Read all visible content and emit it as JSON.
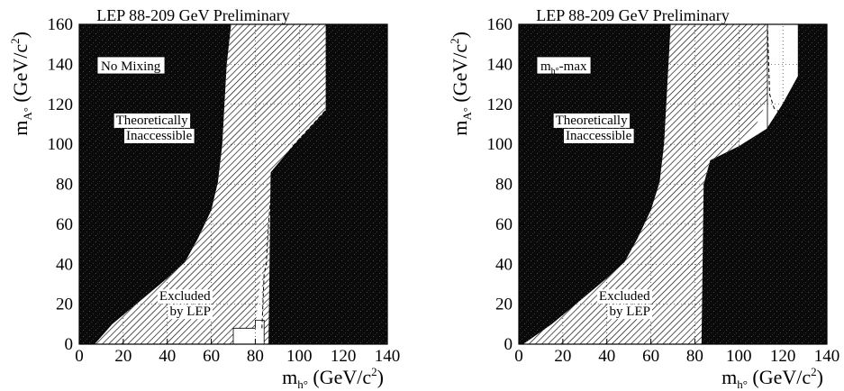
{
  "chart_data": [
    {
      "type": "area",
      "title": "LEP 88-209 GeV Preliminary",
      "scenario_label": "No Mixing",
      "xlabel": {
        "main": "m",
        "sub": "h°",
        "unit": " (GeV/c",
        "sup": "2",
        "close": ")"
      },
      "ylabel": {
        "main": "m",
        "sub": "A°",
        "unit": " (GeV/c",
        "sup": "2",
        "close": ")"
      },
      "xlim": [
        0,
        140
      ],
      "ylim": [
        0,
        160
      ],
      "x_ticks": [
        "0",
        "20",
        "40",
        "60",
        "80",
        "100",
        "120",
        "140"
      ],
      "y_ticks": [
        "0",
        "20",
        "40",
        "60",
        "80",
        "100",
        "120",
        "140",
        "160"
      ],
      "grid": true,
      "annotations": [
        {
          "text": [
            "Theoretically",
            "Inaccessible"
          ],
          "x": 33,
          "y": 110
        },
        {
          "text": [
            "Excluded",
            "by LEP"
          ],
          "x": 48,
          "y": 22
        }
      ],
      "regions": {
        "theoretically_inaccessible_left": [
          [
            0,
            0
          ],
          [
            7,
            0
          ],
          [
            15,
            10
          ],
          [
            27,
            21
          ],
          [
            40,
            33
          ],
          [
            48,
            41
          ],
          [
            54,
            53
          ],
          [
            60,
            67
          ],
          [
            63,
            81
          ],
          [
            65,
            100
          ],
          [
            66,
            120
          ],
          [
            67,
            140
          ],
          [
            69,
            160
          ],
          [
            0,
            160
          ]
        ],
        "theoretically_inaccessible_right": [
          [
            112,
            160
          ],
          [
            112,
            117
          ],
          [
            107,
            111
          ],
          [
            97,
            99
          ],
          [
            87,
            86
          ],
          [
            86,
            0
          ],
          [
            140,
            0
          ],
          [
            140,
            160
          ]
        ],
        "excluded_by_lep": [
          [
            7,
            0
          ],
          [
            15,
            10
          ],
          [
            27,
            21
          ],
          [
            40,
            33
          ],
          [
            48,
            41
          ],
          [
            54,
            53
          ],
          [
            60,
            67
          ],
          [
            63,
            81
          ],
          [
            65,
            100
          ],
          [
            66,
            120
          ],
          [
            67,
            140
          ],
          [
            69,
            160
          ],
          [
            112,
            160
          ],
          [
            112,
            117
          ],
          [
            107,
            111
          ],
          [
            97,
            99
          ],
          [
            87,
            86
          ],
          [
            86,
            0
          ],
          [
            84,
            0
          ],
          [
            84,
            8
          ],
          [
            83,
            18
          ],
          [
            83,
            40
          ],
          [
            80,
            8
          ],
          [
            70,
            8
          ],
          [
            70,
            0
          ]
        ],
        "allowed_white": [
          [
            70,
            0
          ],
          [
            70,
            8
          ],
          [
            80,
            8
          ],
          [
            80,
            12
          ],
          [
            84,
            12
          ],
          [
            84,
            0
          ]
        ]
      },
      "curves": [
        {
          "name": "expected",
          "style": "dashed",
          "x": [
            83,
            84,
            85,
            86,
            88,
            97,
            107,
            112
          ],
          "y": [
            8,
            35,
            40,
            60,
            86,
            99,
            111,
            117
          ]
        }
      ]
    },
    {
      "type": "area",
      "title": "LEP 88-209 GeV Preliminary",
      "scenario_label": "m",
      "scenario_label_sub": "h°",
      "scenario_label_tail": "-max",
      "xlabel": {
        "main": "m",
        "sub": "h°",
        "unit": " (GeV/c",
        "sup": "2",
        "close": ")"
      },
      "ylabel": {
        "main": "m",
        "sub": "A°",
        "unit": " (GeV/c",
        "sup": "2",
        "close": ")"
      },
      "xlim": [
        0,
        140
      ],
      "ylim": [
        0,
        160
      ],
      "x_ticks": [
        "0",
        "20",
        "40",
        "60",
        "80",
        "100",
        "120",
        "140"
      ],
      "y_ticks": [
        "0",
        "20",
        "40",
        "60",
        "80",
        "100",
        "120",
        "140",
        "160"
      ],
      "grid": true,
      "annotations": [
        {
          "text": [
            "Theoretically",
            "Inaccessible"
          ],
          "x": 33,
          "y": 110
        },
        {
          "text": [
            "Excluded",
            "by LEP"
          ],
          "x": 48,
          "y": 22
        }
      ],
      "regions": {
        "theoretically_inaccessible_left": [
          [
            0,
            0
          ],
          [
            2,
            0
          ],
          [
            15,
            10
          ],
          [
            27,
            21
          ],
          [
            40,
            33
          ],
          [
            48,
            41
          ],
          [
            54,
            53
          ],
          [
            60,
            67
          ],
          [
            64,
            81
          ],
          [
            66,
            100
          ],
          [
            67,
            120
          ],
          [
            68,
            140
          ],
          [
            69,
            160
          ],
          [
            0,
            160
          ]
        ],
        "theoretically_inaccessible_right": [
          [
            127,
            160
          ],
          [
            127,
            134
          ],
          [
            120,
            120
          ],
          [
            113,
            108
          ],
          [
            100,
            99
          ],
          [
            87,
            92
          ],
          [
            84,
            80
          ],
          [
            83,
            0
          ],
          [
            140,
            0
          ],
          [
            140,
            160
          ]
        ],
        "excluded_by_lep": [
          [
            2,
            0
          ],
          [
            15,
            10
          ],
          [
            27,
            21
          ],
          [
            40,
            33
          ],
          [
            48,
            41
          ],
          [
            54,
            53
          ],
          [
            60,
            67
          ],
          [
            64,
            81
          ],
          [
            66,
            100
          ],
          [
            67,
            120
          ],
          [
            68,
            140
          ],
          [
            69,
            160
          ],
          [
            113,
            160
          ],
          [
            113,
            122
          ],
          [
            108,
            110
          ],
          [
            100,
            99
          ],
          [
            87,
            92
          ],
          [
            84,
            80
          ],
          [
            83,
            0
          ]
        ],
        "allowed_white": [
          [
            113,
            160
          ],
          [
            127,
            160
          ],
          [
            127,
            134
          ],
          [
            120,
            120
          ],
          [
            113,
            108
          ]
        ]
      },
      "curves": [
        {
          "name": "expected",
          "style": "dashed",
          "x": [
            113,
            114,
            116,
            120,
            127
          ],
          "y": [
            160,
            125,
            118,
            115,
            113
          ]
        }
      ]
    }
  ]
}
